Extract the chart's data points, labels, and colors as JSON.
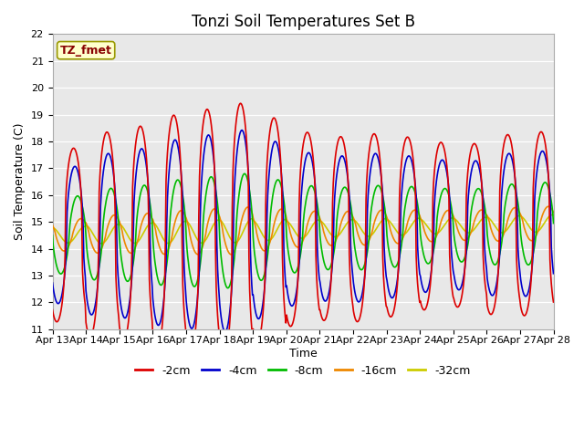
{
  "title": "Tonzi Soil Temperatures Set B",
  "xlabel": "Time",
  "ylabel": "Soil Temperature (C)",
  "ylim": [
    11.0,
    22.0
  ],
  "yticks": [
    11.0,
    12.0,
    13.0,
    14.0,
    15.0,
    16.0,
    17.0,
    18.0,
    19.0,
    20.0,
    21.0,
    22.0
  ],
  "series_names": [
    "-2cm",
    "-4cm",
    "-8cm",
    "-16cm",
    "-32cm"
  ],
  "colors": [
    "#dd0000",
    "#0000cc",
    "#00bb00",
    "#ee8800",
    "#cccc00"
  ],
  "lws": [
    1.2,
    1.2,
    1.2,
    1.2,
    1.2
  ],
  "legend_label": "TZ_fmet",
  "legend_box_facecolor": "#ffffcc",
  "legend_box_edgecolor": "#999900",
  "background_color": "#e8e8e8",
  "start_day": 13,
  "n_days": 15,
  "pts_per_day": 48,
  "base_temp": 14.5,
  "amplitudes": [
    3.8,
    3.0,
    1.7,
    0.7,
    0.35
  ],
  "phase_shifts_days": [
    0.38,
    0.42,
    0.5,
    0.6,
    0.72
  ],
  "day_peak_scales": [
    0.85,
    1.0,
    1.05,
    1.15,
    1.2,
    1.25,
    1.1,
    0.95,
    0.9,
    0.92,
    0.88,
    0.82,
    0.8,
    0.88,
    0.9
  ],
  "trend_per_day": 0.03,
  "title_fontsize": 12,
  "axis_label_fontsize": 9,
  "tick_fontsize": 8
}
